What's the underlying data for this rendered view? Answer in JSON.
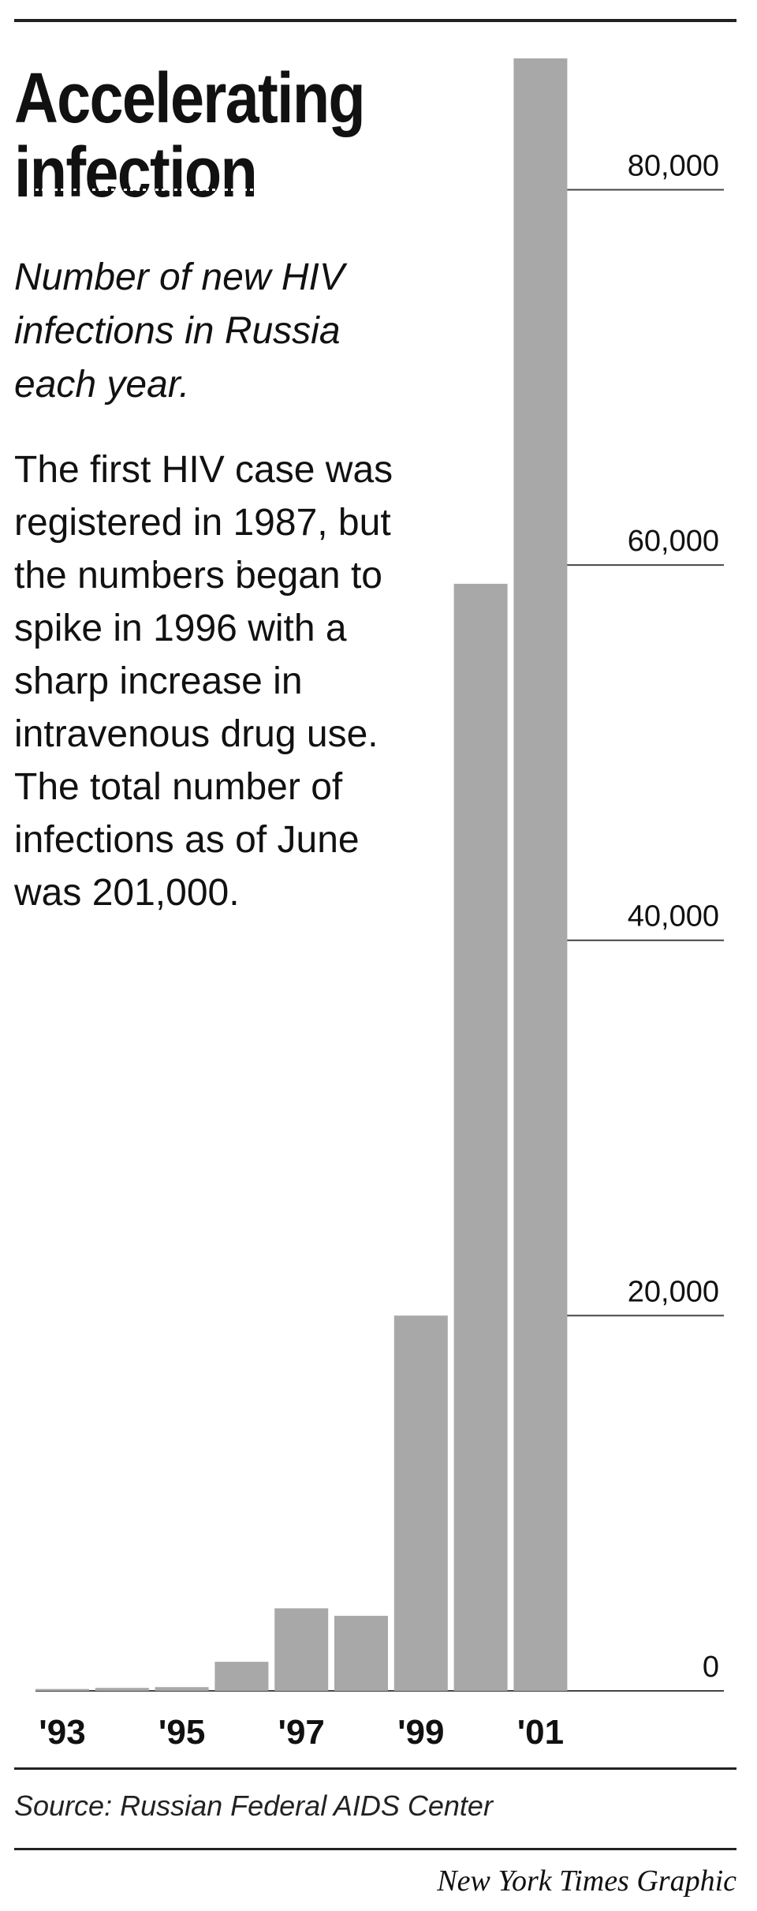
{
  "title": "Accelerating infection",
  "subtitle": "Number of new HIV infections in Russia each year.",
  "description": "The first HIV case was registered in 1987, but the numbers began to spike in 1996 with a sharp increase in intravenous drug use. The total number of infections as of June was 201,000.",
  "source": "Source: Russian Federal AIDS Center",
  "credit": "New York Times Graphic",
  "chart_data": {
    "type": "bar",
    "categories": [
      "1993",
      "1994",
      "1995",
      "1996",
      "1997",
      "1998",
      "1999",
      "2000",
      "2001"
    ],
    "x_tick_labels": [
      {
        "category": "1993",
        "label": "'93"
      },
      {
        "category": "1995",
        "label": "'95"
      },
      {
        "category": "1997",
        "label": "'97"
      },
      {
        "category": "1999",
        "label": "'99"
      },
      {
        "category": "2001",
        "label": "'01"
      }
    ],
    "values": [
      100,
      160,
      200,
      1550,
      4400,
      4000,
      20000,
      59000,
      87000
    ],
    "ylim": [
      0,
      87000
    ],
    "y_ticks": [
      0,
      20000,
      40000,
      60000,
      80000
    ],
    "y_tick_labels": [
      "0",
      "20,000",
      "40,000",
      "60,000",
      "80,000"
    ],
    "xlabel": "",
    "ylabel": "",
    "grid": true,
    "colors": {
      "bar": "#a8a8a8",
      "grid": "#444444",
      "text": "#111111"
    }
  }
}
